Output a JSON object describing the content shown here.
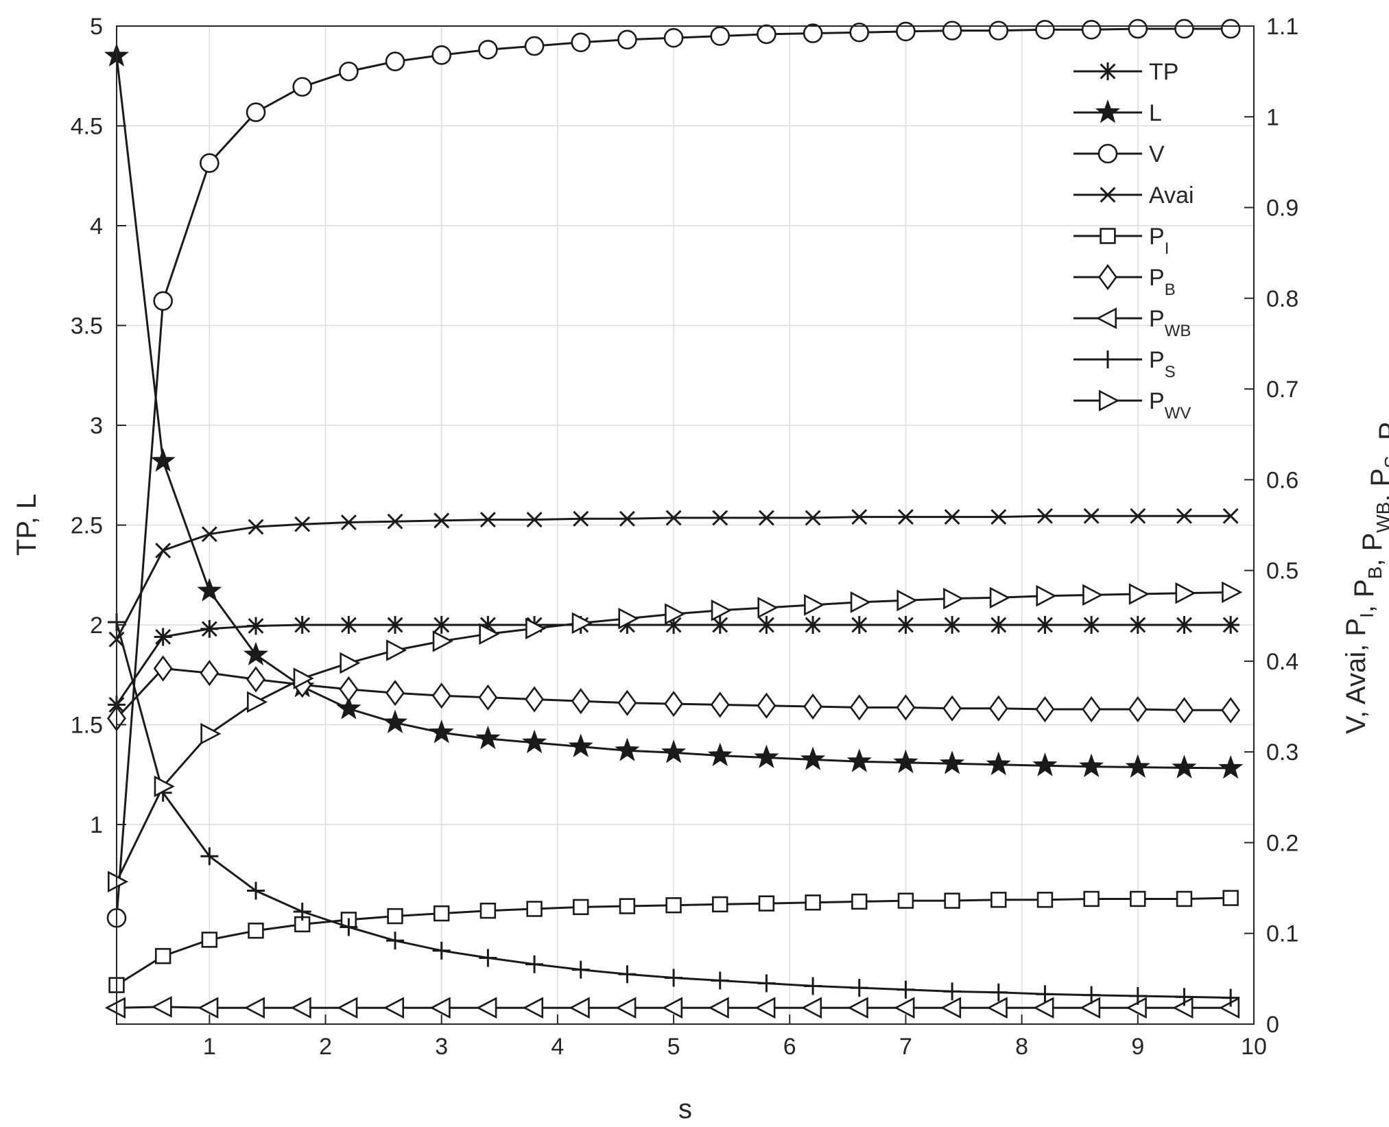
{
  "chart_data": {
    "type": "line",
    "xlabel": "s",
    "ylabel_left": "TP, L",
    "ylabel_right": "V, Avai, P_I, P_B, P_WB, P_S, P_WV",
    "xlim": [
      0.2,
      10
    ],
    "ylim_left": [
      0.0,
      5
    ],
    "ylim_right": [
      0,
      1.1
    ],
    "grid": true,
    "legend_position": "top-right",
    "xticks": [
      "1",
      "2",
      "3",
      "4",
      "5",
      "6",
      "7",
      "8",
      "9",
      "10"
    ],
    "yticks_left": [
      "1",
      "1.5",
      "2",
      "2.5",
      "3",
      "3.5",
      "4",
      "4.5",
      "5"
    ],
    "yticks_right": [
      "0",
      "0.1",
      "0.2",
      "0.3",
      "0.4",
      "0.5",
      "0.6",
      "0.7",
      "0.8",
      "0.9",
      "1",
      "1.1"
    ],
    "x": [
      0.2,
      0.6,
      1.0,
      1.4,
      1.8,
      2.2,
      2.6,
      3.0,
      3.4,
      3.8,
      4.2,
      4.6,
      5.0,
      5.4,
      5.8,
      6.2,
      6.6,
      7.0,
      7.4,
      7.8,
      8.2,
      8.6,
      9.0,
      9.4,
      9.8
    ],
    "series": [
      {
        "name": "TP",
        "sub": "",
        "marker": "asterisk",
        "axis": "left",
        "values": [
          1.6,
          1.94,
          1.98,
          1.995,
          2.0,
          2.0,
          2.0,
          2.0,
          2.0,
          2.0,
          2.0,
          2.0,
          2.0,
          2.0,
          2.0,
          2.0,
          2.0,
          2.0,
          2.0,
          2.0,
          2.0,
          2.0,
          2.0,
          2.0,
          2.0
        ]
      },
      {
        "name": "L",
        "sub": "",
        "marker": "star",
        "axis": "left",
        "values": [
          4.85,
          2.82,
          2.17,
          1.85,
          1.69,
          1.58,
          1.51,
          1.46,
          1.43,
          1.41,
          1.39,
          1.37,
          1.36,
          1.345,
          1.335,
          1.325,
          1.315,
          1.31,
          1.305,
          1.3,
          1.295,
          1.29,
          1.287,
          1.284,
          1.282
        ]
      },
      {
        "name": "V",
        "sub": "",
        "marker": "circle",
        "axis": "right",
        "values": [
          0.117,
          0.797,
          0.949,
          1.005,
          1.033,
          1.05,
          1.061,
          1.068,
          1.074,
          1.078,
          1.082,
          1.085,
          1.087,
          1.089,
          1.091,
          1.092,
          1.093,
          1.094,
          1.095,
          1.095,
          1.096,
          1.096,
          1.097,
          1.097,
          1.097
        ]
      },
      {
        "name": "Avai",
        "sub": "",
        "marker": "x",
        "axis": "right",
        "values": [
          0.424,
          0.522,
          0.54,
          0.548,
          0.551,
          0.553,
          0.554,
          0.555,
          0.556,
          0.556,
          0.557,
          0.557,
          0.558,
          0.558,
          0.558,
          0.558,
          0.559,
          0.559,
          0.559,
          0.559,
          0.56,
          0.56,
          0.56,
          0.56,
          0.56
        ]
      },
      {
        "name": "P",
        "sub": "I",
        "marker": "square",
        "axis": "right",
        "values": [
          0.043,
          0.075,
          0.093,
          0.103,
          0.11,
          0.115,
          0.119,
          0.122,
          0.125,
          0.127,
          0.129,
          0.13,
          0.131,
          0.132,
          0.133,
          0.134,
          0.135,
          0.136,
          0.136,
          0.137,
          0.137,
          0.138,
          0.138,
          0.138,
          0.139
        ]
      },
      {
        "name": "P",
        "sub": "B",
        "marker": "diamond",
        "axis": "right",
        "values": [
          0.337,
          0.392,
          0.387,
          0.38,
          0.374,
          0.369,
          0.365,
          0.362,
          0.36,
          0.358,
          0.356,
          0.354,
          0.353,
          0.352,
          0.351,
          0.35,
          0.349,
          0.349,
          0.348,
          0.348,
          0.347,
          0.347,
          0.347,
          0.346,
          0.346
        ]
      },
      {
        "name": "P",
        "sub": "WB",
        "marker": "triangle-left",
        "axis": "right",
        "values": [
          0.018,
          0.019,
          0.018,
          0.018,
          0.018,
          0.018,
          0.018,
          0.018,
          0.018,
          0.018,
          0.018,
          0.018,
          0.018,
          0.018,
          0.018,
          0.018,
          0.018,
          0.018,
          0.018,
          0.018,
          0.018,
          0.018,
          0.018,
          0.018,
          0.018
        ]
      },
      {
        "name": "P",
        "sub": "S",
        "marker": "plus",
        "axis": "right",
        "values": [
          0.443,
          0.255,
          0.185,
          0.147,
          0.124,
          0.107,
          0.092,
          0.081,
          0.073,
          0.066,
          0.06,
          0.055,
          0.051,
          0.048,
          0.045,
          0.042,
          0.04,
          0.038,
          0.036,
          0.035,
          0.033,
          0.032,
          0.031,
          0.03,
          0.029
        ]
      },
      {
        "name": "P",
        "sub": "WV",
        "marker": "triangle-right",
        "axis": "right",
        "values": [
          0.157,
          0.262,
          0.32,
          0.355,
          0.381,
          0.398,
          0.412,
          0.422,
          0.43,
          0.436,
          0.442,
          0.447,
          0.452,
          0.456,
          0.459,
          0.462,
          0.465,
          0.467,
          0.469,
          0.47,
          0.472,
          0.473,
          0.474,
          0.475,
          0.476
        ]
      }
    ]
  }
}
